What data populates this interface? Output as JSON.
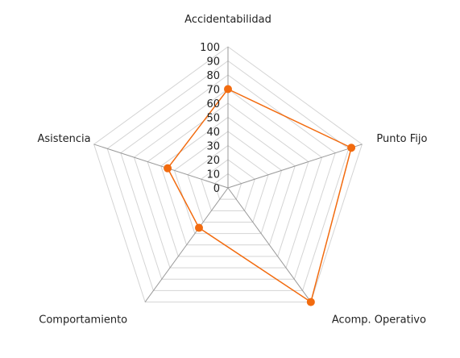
{
  "chart_data": {
    "type": "radar",
    "title": "",
    "axes": [
      "Accidentabilidad",
      "Punto Fijo",
      "Acomp. Operativo",
      "Comportamiento",
      "Asistencia"
    ],
    "radial_range": [
      0,
      100
    ],
    "radial_ticks": [
      0,
      10,
      20,
      30,
      40,
      50,
      60,
      70,
      80,
      90,
      100
    ],
    "grid": true,
    "legend": "none",
    "series": [
      {
        "values": [
          70,
          92,
          100,
          35,
          45
        ],
        "color": "#f26b0f"
      }
    ],
    "colors": {
      "grid": "#d4d4d4",
      "spoke": "#999999",
      "text": "#222222"
    }
  }
}
